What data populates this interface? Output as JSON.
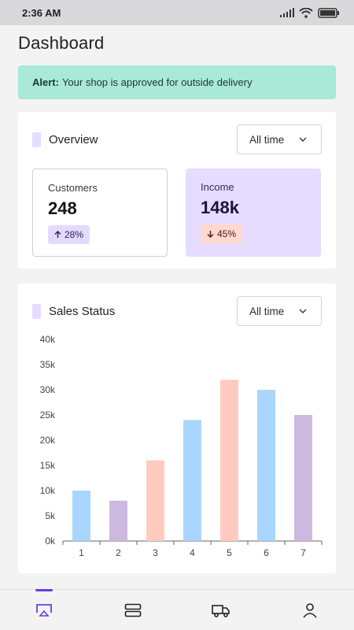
{
  "status_bar": {
    "time": "2:36 AM"
  },
  "page": {
    "title": "Dashboard"
  },
  "alert": {
    "label": "Alert:",
    "message": "Your shop is approved for outside delivery"
  },
  "overview": {
    "title": "Overview",
    "filter": "All time",
    "customers": {
      "label": "Customers",
      "value": "248",
      "change": "28%",
      "direction": "up"
    },
    "income": {
      "label": "Income",
      "value": "148k",
      "change": "45%",
      "direction": "down"
    }
  },
  "sales": {
    "title": "Sales Status",
    "filter": "All time"
  },
  "chart_data": {
    "type": "bar",
    "categories": [
      "1",
      "2",
      "3",
      "4",
      "5",
      "6",
      "7"
    ],
    "values": [
      10000,
      8000,
      16000,
      24000,
      32000,
      30000,
      25000
    ],
    "bar_colors": [
      "#a9d6ff",
      "#cdb8e0",
      "#ffcbbf",
      "#a9d6ff",
      "#ffcbbf",
      "#a9d6ff",
      "#cdb8e0"
    ],
    "ylim": [
      0,
      40000
    ],
    "yticks": [
      "0k",
      "5k",
      "10k",
      "15k",
      "20k",
      "25k",
      "30k",
      "35k",
      "40k"
    ],
    "grid": false
  },
  "colors": {
    "accent": "#6b3fd6",
    "alert_bg": "#a9e9d6",
    "income_bg": "#e5dcff"
  },
  "nav": {
    "items": [
      {
        "name": "cast-icon",
        "active": true
      },
      {
        "name": "storage-icon",
        "active": false
      },
      {
        "name": "delivery-truck-icon",
        "active": false
      },
      {
        "name": "profile-icon",
        "active": false
      }
    ]
  }
}
